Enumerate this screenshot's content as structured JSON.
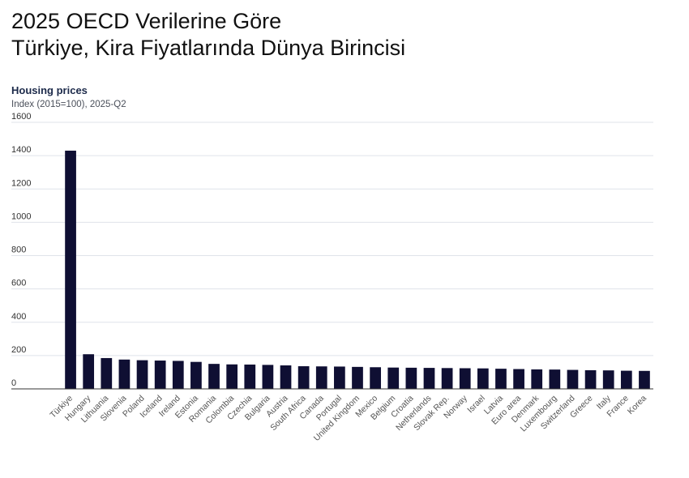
{
  "headline": {
    "line1": "2025 OECD Verilerine Göre",
    "line2": "Türkiye, Kira Fiyatlarında Dünya Birincisi"
  },
  "colors": {
    "bar": "#0f0f33",
    "grid": "#dfe3ea",
    "axis": "#333333"
  },
  "chart_data": {
    "type": "bar",
    "title": "Housing prices",
    "subtitle": "Index (2015=100), 2025-Q2",
    "ylim": [
      0,
      1600
    ],
    "yticks": [
      0,
      200,
      400,
      600,
      800,
      1000,
      1200,
      1400,
      1600
    ],
    "grid": true,
    "categories": [
      "Türkiye",
      "Hungary",
      "Lithuania",
      "Slovenia",
      "Poland",
      "Iceland",
      "Ireland",
      "Estonia",
      "Romania",
      "Colombia",
      "Czechia",
      "Bulgaria",
      "Austria",
      "South Africa",
      "Canada",
      "Portugal",
      "United Kingdom",
      "Mexico",
      "Belgium",
      "Croatia",
      "Netherlands",
      "Slovak Rep.",
      "Norway",
      "Israel",
      "Latvia",
      "Euro area",
      "Denmark",
      "Luxembourg",
      "Switzerland",
      "Greece",
      "Italy",
      "France",
      "Korea"
    ],
    "values": [
      1430,
      208,
      185,
      176,
      172,
      170,
      168,
      162,
      150,
      147,
      146,
      144,
      141,
      136,
      135,
      134,
      132,
      130,
      128,
      127,
      126,
      125,
      124,
      123,
      121,
      119,
      117,
      116,
      114,
      112,
      111,
      109,
      108
    ]
  }
}
